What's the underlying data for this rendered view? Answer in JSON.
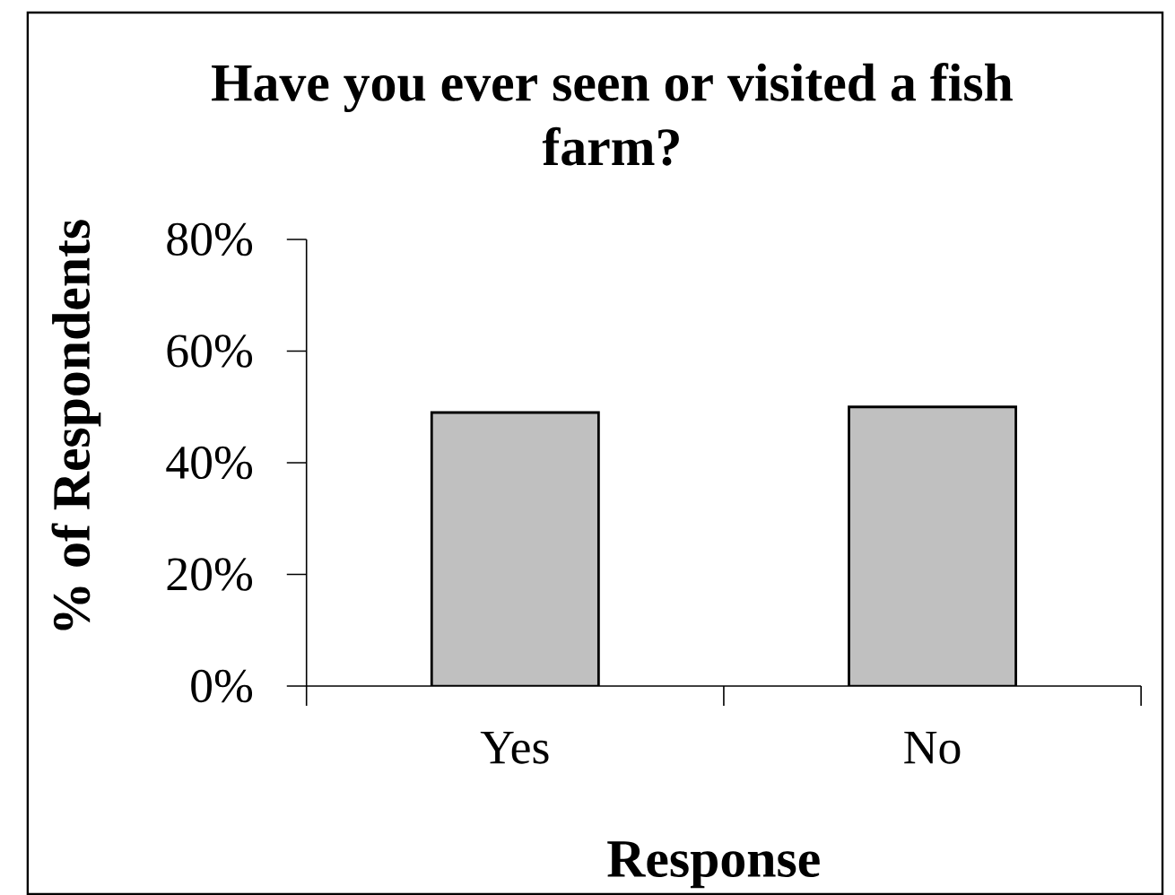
{
  "chart_data": {
    "type": "bar",
    "title": "Have you ever seen or visited a fish farm?",
    "xlabel": "Response",
    "ylabel": "% of Respondents",
    "categories": [
      "Yes",
      "No"
    ],
    "values": [
      49,
      50
    ],
    "color": "#c0c0c0",
    "ylim": [
      0,
      80
    ],
    "yticks": [
      {
        "value": 0,
        "label": "0%"
      },
      {
        "value": 20,
        "label": "20%"
      },
      {
        "value": 40,
        "label": "40%"
      },
      {
        "value": 60,
        "label": "60%"
      },
      {
        "value": 80,
        "label": "80%"
      }
    ]
  }
}
